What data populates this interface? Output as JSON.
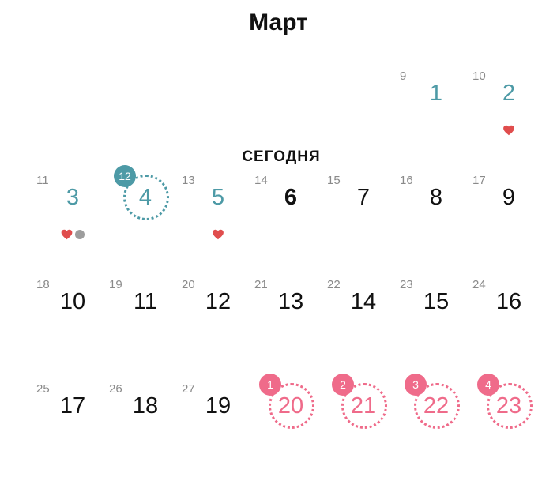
{
  "month_title": "Март",
  "today_label": "СЕГОДНЯ",
  "colors": {
    "teal": "#4d9aa6",
    "pink": "#ef6b8a",
    "heart": "#e04d4d",
    "dot": "#9d9d9d"
  },
  "weeks": [
    {
      "days": [
        {
          "cycle_day": "9",
          "date": "1",
          "style": "teal"
        },
        {
          "cycle_day": "10",
          "date": "2",
          "style": "teal",
          "markers": [
            "heart"
          ]
        }
      ]
    },
    {
      "days": [
        {
          "cycle_day": "11",
          "date": "3",
          "style": "teal",
          "markers": [
            "heart",
            "dot"
          ]
        },
        {
          "cycle_day": "",
          "date": "4",
          "style": "teal",
          "ring": true,
          "badge": "12"
        },
        {
          "cycle_day": "13",
          "date": "5",
          "style": "teal",
          "markers": [
            "heart"
          ]
        },
        {
          "cycle_day": "14",
          "date": "6",
          "style": "today"
        },
        {
          "cycle_day": "15",
          "date": "7"
        },
        {
          "cycle_day": "16",
          "date": "8"
        },
        {
          "cycle_day": "17",
          "date": "9"
        }
      ]
    },
    {
      "days": [
        {
          "cycle_day": "18",
          "date": "10"
        },
        {
          "cycle_day": "19",
          "date": "11"
        },
        {
          "cycle_day": "20",
          "date": "12"
        },
        {
          "cycle_day": "21",
          "date": "13"
        },
        {
          "cycle_day": "22",
          "date": "14"
        },
        {
          "cycle_day": "23",
          "date": "15"
        },
        {
          "cycle_day": "24",
          "date": "16"
        }
      ]
    },
    {
      "days": [
        {
          "cycle_day": "25",
          "date": "17"
        },
        {
          "cycle_day": "26",
          "date": "18"
        },
        {
          "cycle_day": "27",
          "date": "19"
        },
        {
          "cycle_day": "",
          "date": "20",
          "style": "pink",
          "ring": true,
          "badge": "1"
        },
        {
          "cycle_day": "",
          "date": "21",
          "style": "pink",
          "ring": true,
          "badge": "2"
        },
        {
          "cycle_day": "",
          "date": "22",
          "style": "pink",
          "ring": true,
          "badge": "3"
        },
        {
          "cycle_day": "",
          "date": "23",
          "style": "pink",
          "ring": true,
          "badge": "4"
        }
      ]
    }
  ]
}
